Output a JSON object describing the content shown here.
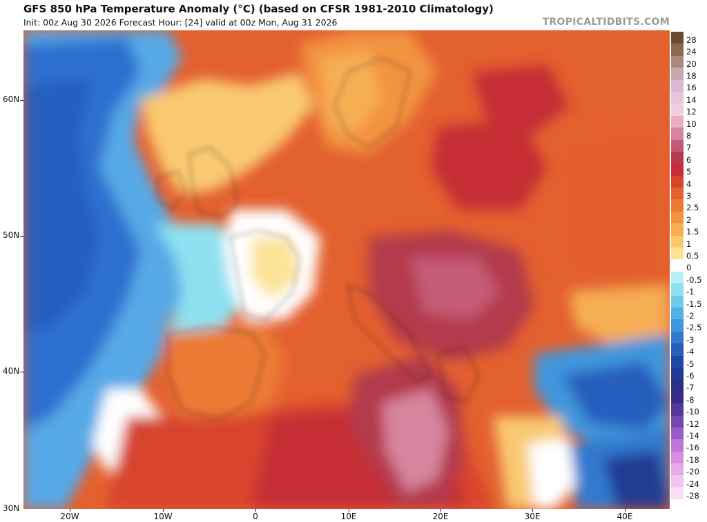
{
  "header": {
    "title": "GFS 850 hPa Temperature Anomaly (°C) (based on CFSR 1981-2010 Climatology)",
    "subtitle": "Init: 00z Aug 30 2026   Forecast Hour: [24]   valid at 00z Mon, Aug 31 2026",
    "brand": "TROPICALTIDBITS.COM"
  },
  "axes": {
    "lat_labels": [
      "60N",
      "50N",
      "40N",
      "30N"
    ],
    "lon_labels": [
      "20W",
      "10W",
      "0",
      "10E",
      "20E",
      "30E",
      "40E"
    ]
  },
  "colorbar": {
    "labels": [
      "28",
      "24",
      "20",
      "18",
      "16",
      "14",
      "12",
      "10",
      "8",
      "7",
      "6",
      "5",
      "4",
      "3",
      "2.5",
      "2",
      "1.5",
      "1",
      "0.5",
      "0",
      "-0.5",
      "-1",
      "-1.5",
      "-2",
      "-2.5",
      "-3",
      "-4",
      "-5",
      "-6",
      "-7",
      "-8",
      "-10",
      "-12",
      "-14",
      "-16",
      "-18",
      "-20",
      "-24",
      "-28"
    ],
    "colors": [
      "#6b4a2e",
      "#8a6a4e",
      "#a8897a",
      "#c7aab0",
      "#d8b9cf",
      "#e6c6dc",
      "#f0cfe0",
      "#e9aec2",
      "#d7849e",
      "#c45b76",
      "#b43a4c",
      "#c52e36",
      "#d8452e",
      "#e3602f",
      "#ec7a34",
      "#f29340",
      "#f6ae53",
      "#f9c96f",
      "#fbe397",
      "#ffffff",
      "#b9eef4",
      "#8ee0f0",
      "#6fcbec",
      "#52b1e6",
      "#3f96dc",
      "#3379cf",
      "#285fbd",
      "#1f48a6",
      "#213a93",
      "#2c3186",
      "#3a2c8a",
      "#56389c",
      "#7348b1",
      "#9a5cc6",
      "#be76d6",
      "#d88ee0",
      "#e8a9e7",
      "#f1c6ee",
      "#f6dff3"
    ]
  },
  "map": {
    "description_colors": {
      "ocean_cold": "#2f6fd0",
      "ocean_mid": "#56a8e6",
      "near_zero": "#ffffff",
      "warm": "#f6ae53",
      "hot": "#d8452e",
      "very_hot": "#b43a4c",
      "extreme": "#d7849e"
    }
  }
}
